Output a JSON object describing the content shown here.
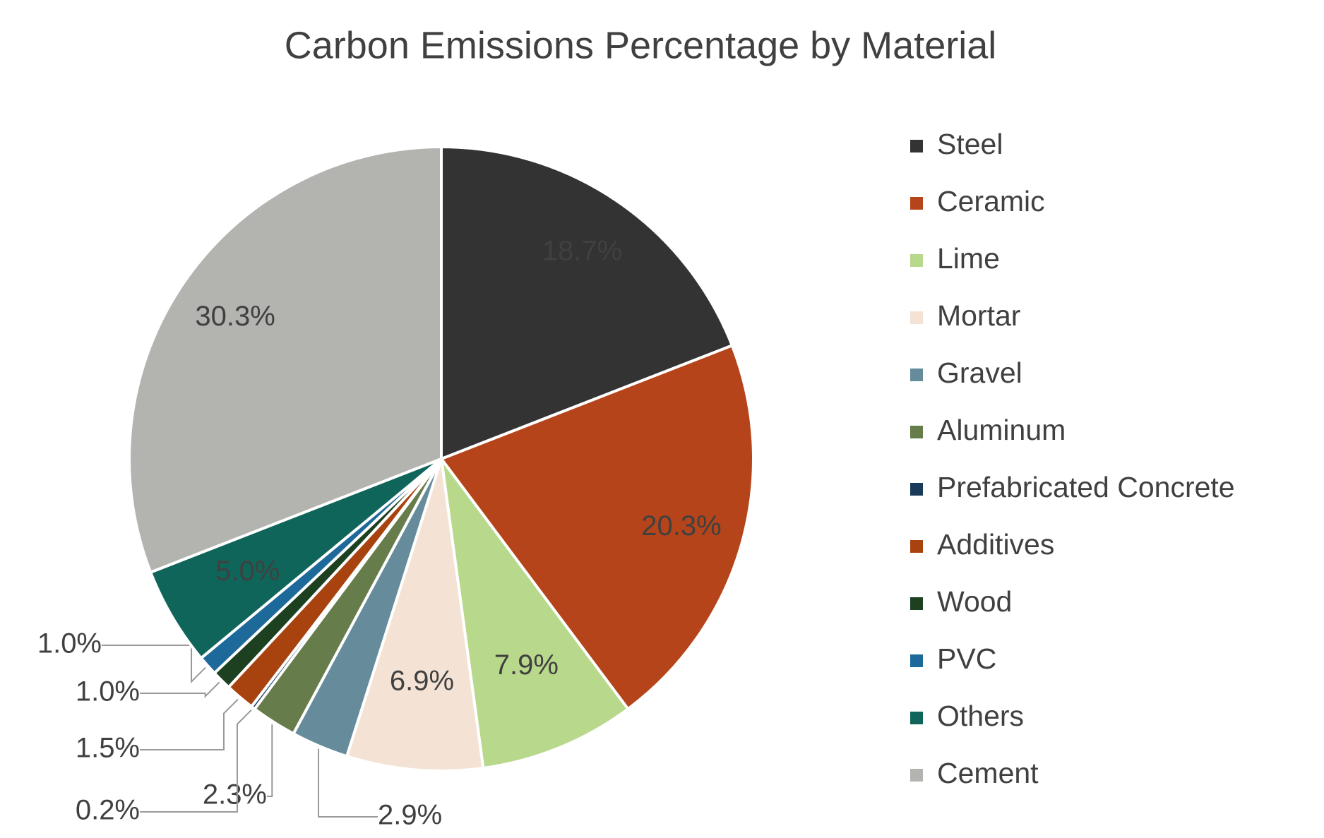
{
  "chart_data": {
    "type": "pie",
    "title": "Carbon Emissions Percentage by Material",
    "categories": [
      "Steel",
      "Ceramic",
      "Lime",
      "Mortar",
      "Gravel",
      "Aluminum",
      "Prefabricated Concrete",
      "Additives",
      "Wood",
      "PVC",
      "Others",
      "Cement"
    ],
    "values": [
      18.7,
      20.3,
      7.9,
      6.9,
      2.9,
      2.3,
      0.2,
      1.5,
      1.0,
      1.0,
      5.0,
      30.3
    ],
    "value_labels": [
      "18.7%",
      "20.3%",
      "7.9%",
      "6.9%",
      "2.9%",
      "2.3%",
      "0.2%",
      "1.5%",
      "1.0%",
      "1.0%",
      "5.0%",
      "30.3%"
    ],
    "colors": [
      "#333333",
      "#b5441a",
      "#b8d88c",
      "#f4e3d4",
      "#668b9b",
      "#667c4a",
      "#1a3a5a",
      "#a8430f",
      "#1c4020",
      "#1d6a9a",
      "#10655a",
      "#b3b3b0"
    ],
    "legend": "right"
  }
}
